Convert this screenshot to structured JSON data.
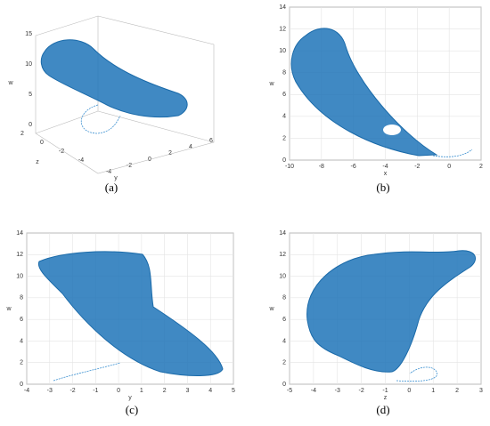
{
  "chart_data": [
    {
      "type": "line3d",
      "caption": "(a)",
      "x_label": "y",
      "y_label": "z",
      "z_label": "w",
      "xticks": [
        -4,
        -2,
        0,
        2,
        4,
        6
      ],
      "yticks": [
        2,
        0,
        -2,
        -4
      ],
      "zticks": [
        0,
        5,
        10,
        15
      ],
      "grid": true
    },
    {
      "type": "line",
      "caption": "(b)",
      "x_label": "x",
      "y_label": "w",
      "xlim": [
        -10,
        2
      ],
      "xticks": [
        -10,
        -8,
        -6,
        -4,
        -2,
        0,
        2
      ],
      "ylim": [
        0,
        14
      ],
      "yticks": [
        0,
        2,
        4,
        6,
        8,
        10,
        12,
        14
      ],
      "grid": true
    },
    {
      "type": "line",
      "caption": "(c)",
      "x_label": "y",
      "y_label": "w",
      "xlim": [
        -4,
        5
      ],
      "xticks": [
        -4,
        -3,
        -2,
        -1,
        0,
        1,
        2,
        3,
        4,
        5
      ],
      "ylim": [
        0,
        14
      ],
      "yticks": [
        0,
        2,
        4,
        6,
        8,
        10,
        12,
        14
      ],
      "grid": true
    },
    {
      "type": "line",
      "caption": "(d)",
      "x_label": "z",
      "y_label": "w",
      "xlim": [
        -5,
        3
      ],
      "xticks": [
        -5,
        -4,
        -3,
        -2,
        -1,
        0,
        1,
        2,
        3
      ],
      "ylim": [
        0,
        14
      ],
      "yticks": [
        0,
        2,
        4,
        6,
        8,
        10,
        12,
        14
      ],
      "grid": true
    }
  ]
}
